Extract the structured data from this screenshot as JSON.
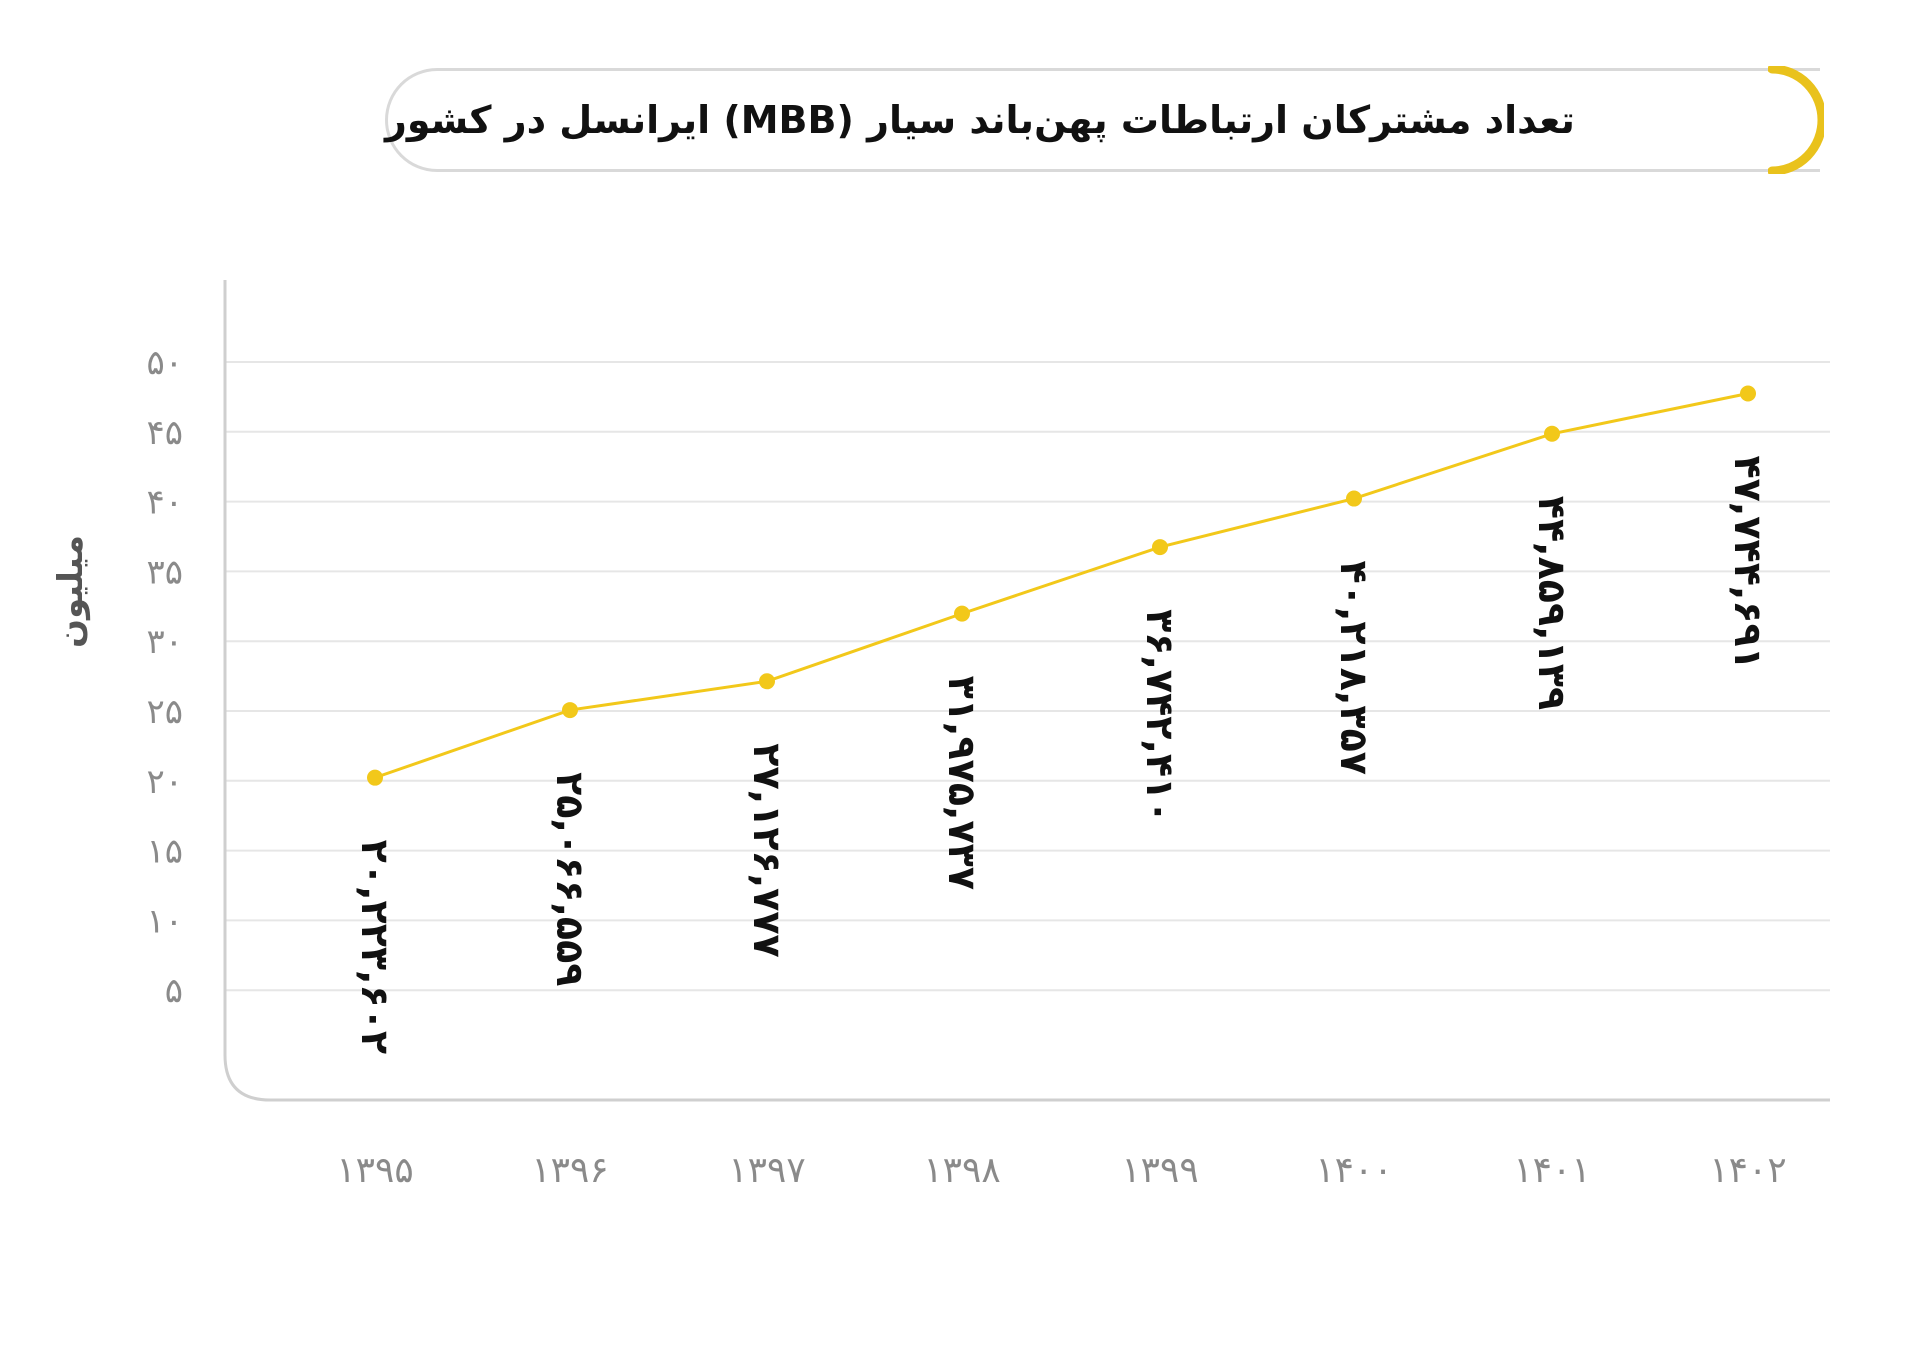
{
  "title": "تعداد مشترکان ارتباطات پهن‌باند سیار (MBB) ایرانسل در کشور",
  "y_unit_label": "میلیون",
  "colors": {
    "line": "#f2c81a",
    "point": "#f2c81a",
    "accent_arc": "#e9c21c",
    "gridline": "#e6e6e6",
    "axis": "#cfcfcf",
    "tick_text": "#8a8a8a",
    "value_text": "#111111"
  },
  "chart_data": {
    "type": "line",
    "title": "تعداد مشترکان ارتباطات پهن‌باند سیار (MBB) ایرانسل در کشور",
    "xlabel": "",
    "ylabel": "میلیون",
    "categories": [
      "۱۳۹۵",
      "۱۳۹۶",
      "۱۳۹۷",
      "۱۳۹۸",
      "۱۳۹۹",
      "۱۴۰۰",
      "۱۴۰۱",
      "۱۴۰۲"
    ],
    "categories_latin": [
      "1395",
      "1396",
      "1397",
      "1398",
      "1399",
      "1400",
      "1401",
      "1402"
    ],
    "values": [
      20223602,
      25066559,
      27126777,
      31975737,
      36742410,
      40218357,
      44859139,
      47744691
    ],
    "value_labels": [
      "۲۰,۲۲۳,۶۰۲",
      "۲۵,۰۶۶,۵۵۹",
      "۲۷,۱۲۶,۷۷۷",
      "۳۱,۹۷۵,۷۳۷",
      "۳۶,۷۴۲,۴۱۰",
      "۴۰,۲۱۸,۳۵۷",
      "۴۴,۸۵۹,۱۳۹",
      "۴۷,۷۴۴,۶۹۱"
    ],
    "yticks": [
      5,
      10,
      15,
      20,
      25,
      30,
      35,
      40,
      45,
      50
    ],
    "ytick_labels": [
      "۵",
      "۱۰",
      "۱۵",
      "۲۰",
      "۲۵",
      "۳۰",
      "۳۵",
      "۴۰",
      "۴۵",
      "۵۰"
    ],
    "ylim": [
      0,
      55
    ],
    "y_scale": "millions",
    "grid": true,
    "legend": null
  }
}
